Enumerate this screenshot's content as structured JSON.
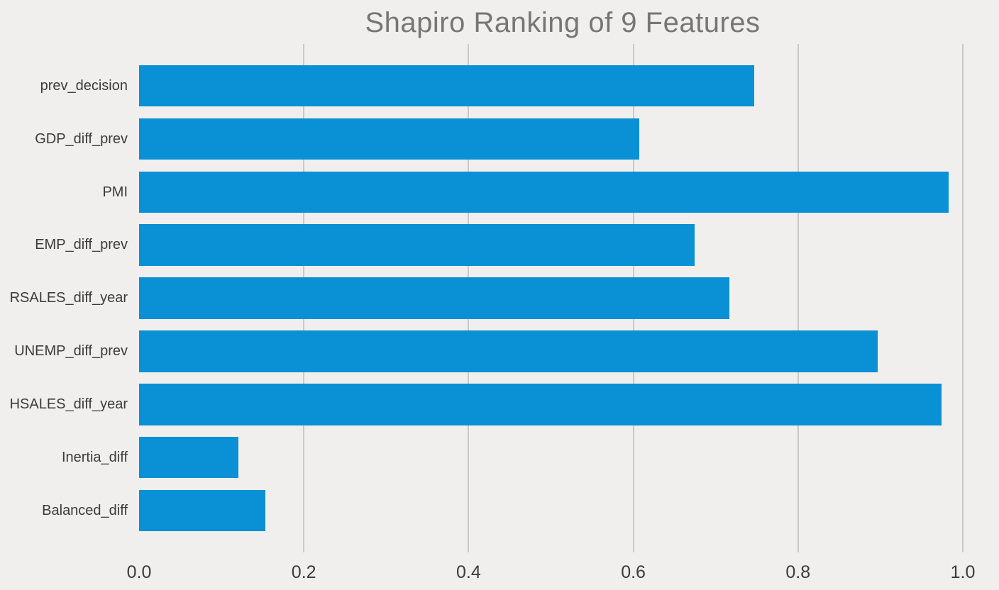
{
  "title": "Shapiro Ranking of 9 Features",
  "colors": {
    "background": "#f0efed",
    "bar": "#0990d5",
    "gridline": "#c9c9c9",
    "title_text": "#767676",
    "tick_text": "#3b3b3b"
  },
  "chart_data": {
    "type": "bar",
    "orientation": "horizontal",
    "title": "Shapiro Ranking of 9 Features",
    "categories": [
      "prev_decision",
      "GDP_diff_prev",
      "PMI",
      "EMP_diff_prev",
      "RSALES_diff_year",
      "UNEMP_diff_prev",
      "HSALES_diff_year",
      "Inertia_diff",
      "Balanced_diff"
    ],
    "values": [
      0.747,
      0.607,
      0.983,
      0.674,
      0.717,
      0.897,
      0.974,
      0.121,
      0.153
    ],
    "xlabel": "",
    "ylabel": "",
    "xlim": [
      0.0,
      1.0
    ],
    "xticks": [
      0.0,
      0.2,
      0.4,
      0.6,
      0.8,
      1.0
    ],
    "xtick_labels": [
      "0.0",
      "0.2",
      "0.4",
      "0.6",
      "0.8",
      "1.0"
    ],
    "grid": "vertical-gridlines-on",
    "legend": "none",
    "bar_color": "#0990d5"
  }
}
